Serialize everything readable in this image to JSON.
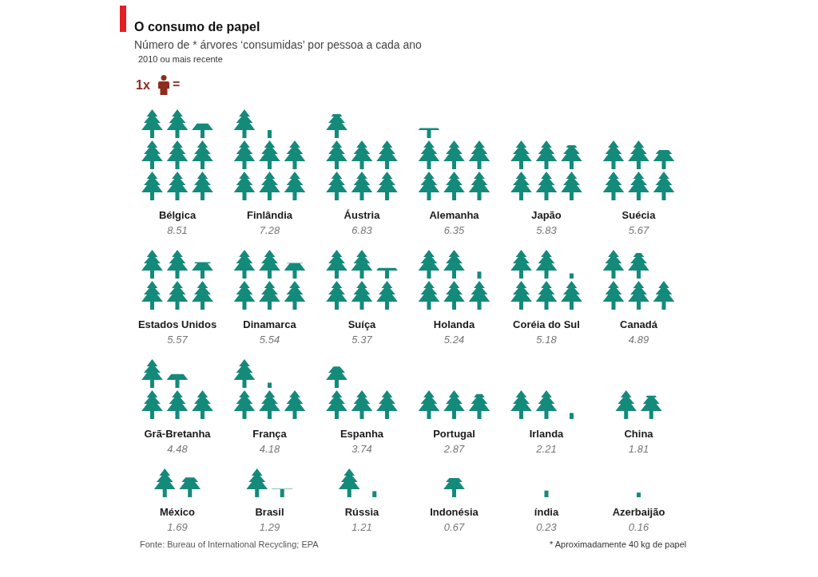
{
  "chart_data": {
    "type": "other",
    "title": "O consumo de papel",
    "subtitle": "Número de * árvores ‘consumidas’ por pessoa a cada ano",
    "categories": [
      "Bélgica",
      "Finlândia",
      "Áustria",
      "Alemanha",
      "Japão",
      "Suécia",
      "Estados Unidos",
      "Dinamarca",
      "Suíça",
      "Holanda",
      "Coréia do Sul",
      "Canadá",
      "Grã-Bretanha",
      "França",
      "Espanha",
      "Portugal",
      "Irlanda",
      "China",
      "México",
      "Brasil",
      "Rússia",
      "Indonésia",
      "índia",
      "Azerbaijão"
    ],
    "values": [
      8.51,
      7.28,
      6.83,
      6.35,
      5.83,
      5.67,
      5.57,
      5.54,
      5.37,
      5.24,
      5.18,
      4.89,
      4.48,
      4.18,
      3.74,
      2.87,
      2.21,
      1.81,
      1.69,
      1.29,
      1.21,
      0.67,
      0.23,
      0.16
    ],
    "color": "#148a7b",
    "data_labels": true,
    "annotations": [
      "2010 ou mais recente",
      "1x",
      "=",
      "Fonte: Bureau of International Recycling; EPA",
      "*  Aproximadamente 40 kg de papel"
    ]
  }
}
